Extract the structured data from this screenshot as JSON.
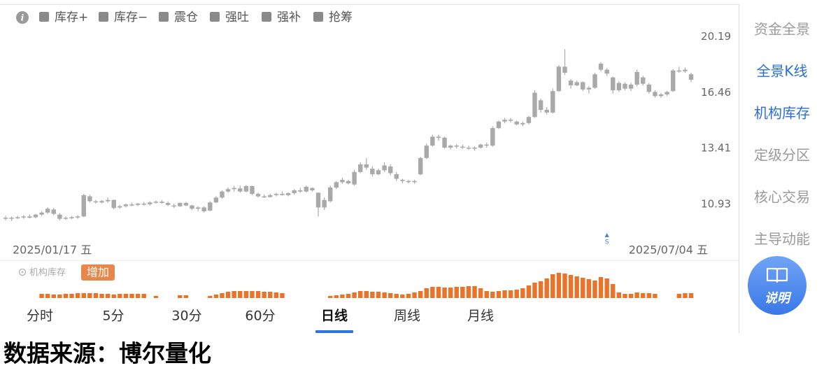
{
  "legend": {
    "items": [
      "库存+",
      "库存−",
      "震仓",
      "强吐",
      "强补",
      "抢筹"
    ],
    "color": "#8a8a8a"
  },
  "chart_data": [
    {
      "type": "candlestick",
      "color": "#a9a9a9",
      "log_scale": true,
      "grid": false,
      "ylim": [
        9.66,
        20.86
      ],
      "yticks": [
        10.93,
        13.41,
        16.46,
        20.19
      ],
      "categories": [
        "2025/01/17 五",
        null,
        null,
        null,
        null,
        null,
        null,
        null,
        null,
        null,
        null,
        null,
        null,
        null,
        null,
        null,
        null,
        null,
        null,
        null,
        null,
        null,
        null,
        null,
        null,
        null,
        null,
        null,
        null,
        null,
        null,
        null,
        null,
        null,
        null,
        null,
        null,
        null,
        null,
        null,
        null,
        null,
        null,
        null,
        null,
        null,
        null,
        null,
        null,
        null,
        null,
        null,
        null,
        null,
        null,
        null,
        null,
        null,
        null,
        null,
        null,
        null,
        null,
        null,
        null,
        null,
        null,
        null,
        null,
        null,
        null,
        null,
        null,
        null,
        null,
        null,
        null,
        null,
        null,
        null,
        null,
        null,
        null,
        null,
        null,
        null,
        null,
        null,
        null,
        null,
        null,
        null,
        null,
        null,
        null,
        null,
        null,
        null,
        null,
        null,
        null,
        null,
        null,
        null,
        null,
        null,
        null,
        null,
        null,
        null,
        null,
        null,
        null,
        null,
        "2025/07/04 五"
      ],
      "open": [
        10.4,
        10.36,
        10.4,
        10.42,
        10.45,
        10.42,
        10.52,
        10.6,
        10.72,
        10.52,
        10.38,
        10.4,
        10.42,
        10.45,
        11.25,
        11.05,
        11.0,
        11.05,
        11.1,
        10.8,
        10.85,
        10.92,
        10.9,
        10.95,
        10.93,
        11.0,
        11.03,
        10.98,
        10.88,
        10.85,
        10.98,
        10.88,
        10.75,
        10.8,
        10.68,
        11.0,
        11.2,
        11.45,
        11.55,
        11.58,
        11.45,
        11.68,
        11.35,
        11.25,
        11.22,
        11.3,
        11.35,
        11.3,
        11.38,
        11.5,
        11.45,
        11.6,
        11.4,
        10.8,
        11.05,
        11.62,
        11.85,
        11.9,
        11.75,
        12.3,
        12.65,
        12.45,
        12.2,
        12.38,
        12.55,
        12.2,
        11.95,
        11.9,
        11.85,
        12.2,
        12.95,
        13.55,
        14.0,
        13.95,
        13.45,
        13.55,
        13.5,
        13.45,
        13.4,
        13.45,
        13.6,
        13.55,
        14.45,
        14.8,
        14.9,
        14.8,
        14.65,
        14.72,
        15.05,
        16.0,
        15.45,
        15.3,
        16.55,
        18.1,
        17.2,
        16.9,
        17.1,
        16.65,
        16.75,
        17.9,
        17.9,
        17.4,
        16.6,
        17.0,
        16.7,
        16.95,
        17.4,
        16.95,
        16.5,
        16.25,
        16.35,
        16.55,
        17.85,
        17.8,
        17.6
      ],
      "high": [
        10.47,
        10.45,
        10.47,
        10.5,
        10.52,
        10.55,
        10.65,
        10.8,
        10.78,
        10.58,
        10.45,
        10.47,
        10.5,
        11.35,
        11.32,
        11.1,
        11.1,
        11.2,
        11.12,
        10.9,
        10.96,
        11.0,
        10.98,
        11.02,
        11.05,
        11.08,
        11.1,
        11.05,
        10.95,
        11.0,
        11.02,
        10.9,
        10.85,
        10.85,
        11.05,
        11.25,
        11.5,
        11.62,
        11.68,
        11.7,
        11.72,
        11.7,
        11.4,
        11.32,
        11.35,
        11.4,
        11.45,
        11.42,
        11.55,
        11.6,
        11.7,
        11.62,
        11.42,
        11.2,
        11.7,
        11.9,
        12.05,
        11.95,
        12.4,
        12.75,
        12.95,
        12.55,
        12.45,
        12.75,
        12.65,
        12.3,
        12.0,
        11.95,
        11.95,
        13.0,
        13.65,
        14.1,
        14.1,
        14.0,
        13.6,
        13.62,
        13.6,
        13.55,
        13.5,
        13.65,
        13.7,
        14.55,
        14.85,
        15.0,
        15.0,
        14.85,
        14.8,
        15.1,
        16.6,
        16.1,
        15.6,
        16.7,
        18.2,
        19.3,
        17.3,
        17.2,
        17.15,
        16.85,
        17.7,
        18.4,
        18.0,
        17.45,
        17.15,
        17.1,
        17.05,
        17.9,
        17.5,
        17.05,
        16.6,
        16.45,
        16.55,
        17.95,
        18.1,
        18.05,
        17.7
      ],
      "low": [
        10.3,
        10.28,
        10.35,
        10.36,
        10.38,
        10.38,
        10.47,
        10.55,
        10.5,
        10.3,
        10.32,
        10.35,
        10.36,
        10.42,
        11.0,
        10.95,
        10.96,
        10.98,
        10.72,
        10.75,
        10.8,
        10.85,
        10.85,
        10.88,
        10.88,
        10.95,
        10.95,
        10.85,
        10.78,
        10.82,
        10.85,
        10.7,
        10.65,
        10.6,
        10.65,
        10.98,
        11.15,
        11.4,
        11.45,
        11.4,
        11.42,
        11.3,
        11.2,
        11.18,
        11.2,
        11.25,
        11.28,
        11.25,
        11.32,
        11.4,
        11.42,
        11.45,
        10.45,
        10.7,
        11.0,
        11.55,
        11.78,
        11.75,
        11.7,
        12.25,
        12.4,
        12.1,
        12.15,
        12.3,
        12.15,
        11.9,
        11.8,
        11.8,
        11.78,
        12.15,
        12.9,
        13.5,
        13.8,
        13.4,
        13.35,
        13.4,
        13.38,
        13.35,
        13.3,
        13.4,
        13.45,
        13.5,
        14.4,
        14.7,
        14.75,
        14.6,
        14.55,
        14.65,
        15.0,
        15.3,
        15.2,
        15.25,
        16.5,
        17.55,
        16.7,
        16.85,
        16.55,
        16.4,
        16.7,
        17.8,
        17.5,
        16.4,
        16.5,
        16.6,
        16.55,
        16.85,
        16.9,
        16.4,
        16.15,
        16.15,
        16.25,
        16.5,
        17.7,
        17.7,
        17.1
      ],
      "close": [
        10.36,
        10.4,
        10.42,
        10.45,
        10.4,
        10.52,
        10.6,
        10.75,
        10.55,
        10.36,
        10.4,
        10.42,
        10.45,
        11.3,
        11.05,
        11.02,
        11.06,
        11.1,
        10.78,
        10.85,
        10.92,
        10.9,
        10.95,
        10.93,
        11.0,
        11.03,
        10.98,
        10.9,
        10.85,
        10.98,
        10.88,
        10.75,
        10.8,
        10.65,
        11.0,
        11.2,
        11.45,
        11.55,
        11.6,
        11.45,
        11.68,
        11.35,
        11.25,
        11.22,
        11.3,
        11.35,
        11.3,
        11.38,
        11.5,
        11.45,
        11.65,
        11.5,
        10.8,
        11.1,
        11.62,
        11.85,
        11.95,
        11.8,
        12.3,
        12.65,
        12.5,
        12.2,
        12.38,
        12.6,
        12.25,
        12.0,
        11.9,
        11.85,
        11.9,
        12.95,
        13.55,
        14.0,
        13.95,
        13.45,
        13.55,
        13.5,
        13.45,
        13.4,
        13.45,
        13.6,
        13.55,
        14.45,
        14.8,
        14.9,
        14.85,
        14.65,
        14.72,
        15.05,
        16.45,
        15.45,
        15.3,
        16.55,
        18.1,
        17.7,
        16.9,
        17.1,
        16.65,
        16.75,
        17.6,
        18.3,
        17.65,
        16.6,
        17.05,
        16.7,
        16.95,
        17.75,
        17.0,
        16.5,
        16.25,
        16.35,
        16.5,
        17.85,
        17.8,
        17.9,
        17.25
      ],
      "signal": {
        "label": "S",
        "index": 100
      }
    },
    {
      "type": "bar",
      "title": "机构库存",
      "badge": "增加",
      "color": "#e8732a",
      "ylim": [
        0,
        40
      ],
      "values": [
        null,
        null,
        null,
        null,
        null,
        null,
        6,
        6,
        5,
        5,
        6,
        6,
        7,
        7,
        7,
        7,
        6,
        6,
        5,
        6,
        6,
        6,
        6,
        6,
        null,
        3,
        null,
        null,
        null,
        4,
        4,
        null,
        null,
        null,
        3,
        5,
        7,
        9,
        10,
        10,
        10,
        10,
        10,
        9,
        9,
        8,
        7,
        null,
        null,
        null,
        null,
        null,
        null,
        null,
        3,
        4,
        5,
        6,
        8,
        10,
        10,
        9,
        9,
        8,
        7,
        6,
        5,
        6,
        8,
        10,
        14,
        16,
        16,
        15,
        15,
        16,
        16,
        17,
        17,
        14,
        10,
        9,
        10,
        11,
        11,
        12,
        14,
        18,
        22,
        24,
        28,
        34,
        36,
        35,
        33,
        31,
        29,
        27,
        25,
        30,
        28,
        20,
        8,
        6,
        6,
        8,
        7,
        7,
        6,
        null,
        null,
        null,
        6,
        7,
        7
      ]
    }
  ],
  "tabs": {
    "items": [
      "分时",
      "5分",
      "30分",
      "60分",
      "日线",
      "周线",
      "月线"
    ],
    "active": 4
  },
  "sidebar": {
    "items": [
      "资金全景",
      "全景K线",
      "机构库存",
      "定级分区",
      "核心交易",
      "主导动能"
    ],
    "highlighted": [
      1,
      2
    ]
  },
  "help_button": "说明",
  "footer": "数据来源：博尔量化"
}
